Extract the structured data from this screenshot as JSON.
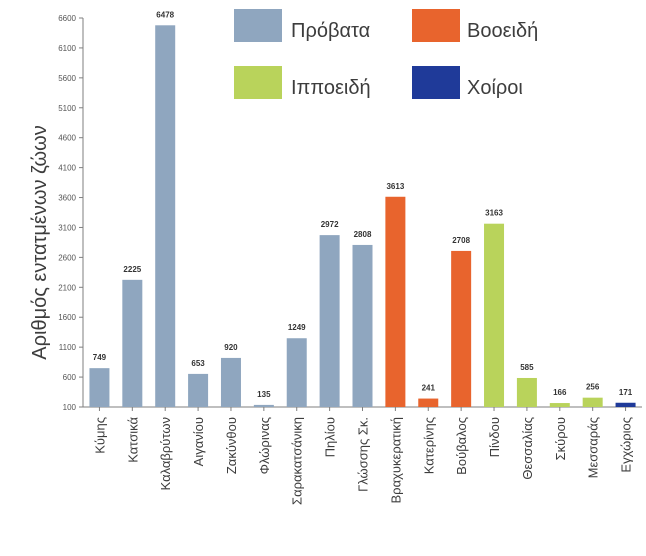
{
  "chart_data": {
    "type": "bar",
    "ylabel": "Αριθμός εντατμένων ζώων",
    "ylim": [
      100,
      6600
    ],
    "yticks": [
      100,
      600,
      1100,
      1600,
      2100,
      2600,
      3100,
      3600,
      4100,
      4600,
      5100,
      5600,
      6100,
      6600
    ],
    "ytick_labels": [
      "100",
      "600",
      "1100",
      "1600",
      "2100",
      "2600",
      "3100",
      "3600",
      "4100",
      "4600",
      "5100",
      "5600",
      "6100",
      "6600"
    ],
    "categories": [
      "Κύμης",
      "Κατσικά",
      "Καλαβρύτων",
      "Αιγανίου",
      "Ζακύνθου",
      "Φλώρινας",
      "Σαρακατσάνικη",
      "Πηλίου",
      "Γλώσσης Σκ.",
      "Βραχυκερατική",
      "Κατερίνης",
      "Βούβαλος",
      "Πίνδου",
      "Θεσσαλίας",
      "Σκύρου",
      "Μεσσαράς",
      "Εγχώριος"
    ],
    "values": [
      749,
      2225,
      6478,
      653,
      920,
      135,
      1249,
      2972,
      2808,
      3613,
      241,
      2708,
      3163,
      585,
      166,
      256,
      171
    ],
    "value_labels": [
      "749",
      "2225",
      "6478",
      "653",
      "920",
      "135",
      "1249",
      "2972",
      "2808",
      "3613",
      "241",
      "2708",
      "3163",
      "585",
      "166",
      "256",
      "171"
    ],
    "bar_groups": [
      "sheep",
      "sheep",
      "sheep",
      "sheep",
      "sheep",
      "sheep",
      "sheep",
      "sheep",
      "sheep",
      "cattle",
      "cattle",
      "cattle",
      "equine",
      "equine",
      "equine",
      "equine",
      "pigs"
    ],
    "legend": [
      {
        "key": "sheep",
        "label": "Πρόβατα",
        "color": "#8fa6bf"
      },
      {
        "key": "cattle",
        "label": "Βοοειδή",
        "color": "#e8642d"
      },
      {
        "key": "equine",
        "label": "Ιπποειδή",
        "color": "#b9d35b"
      },
      {
        "key": "pigs",
        "label": "Χοίροι",
        "color": "#1f3a99"
      }
    ],
    "legend_position": "top-right",
    "grid": false
  }
}
